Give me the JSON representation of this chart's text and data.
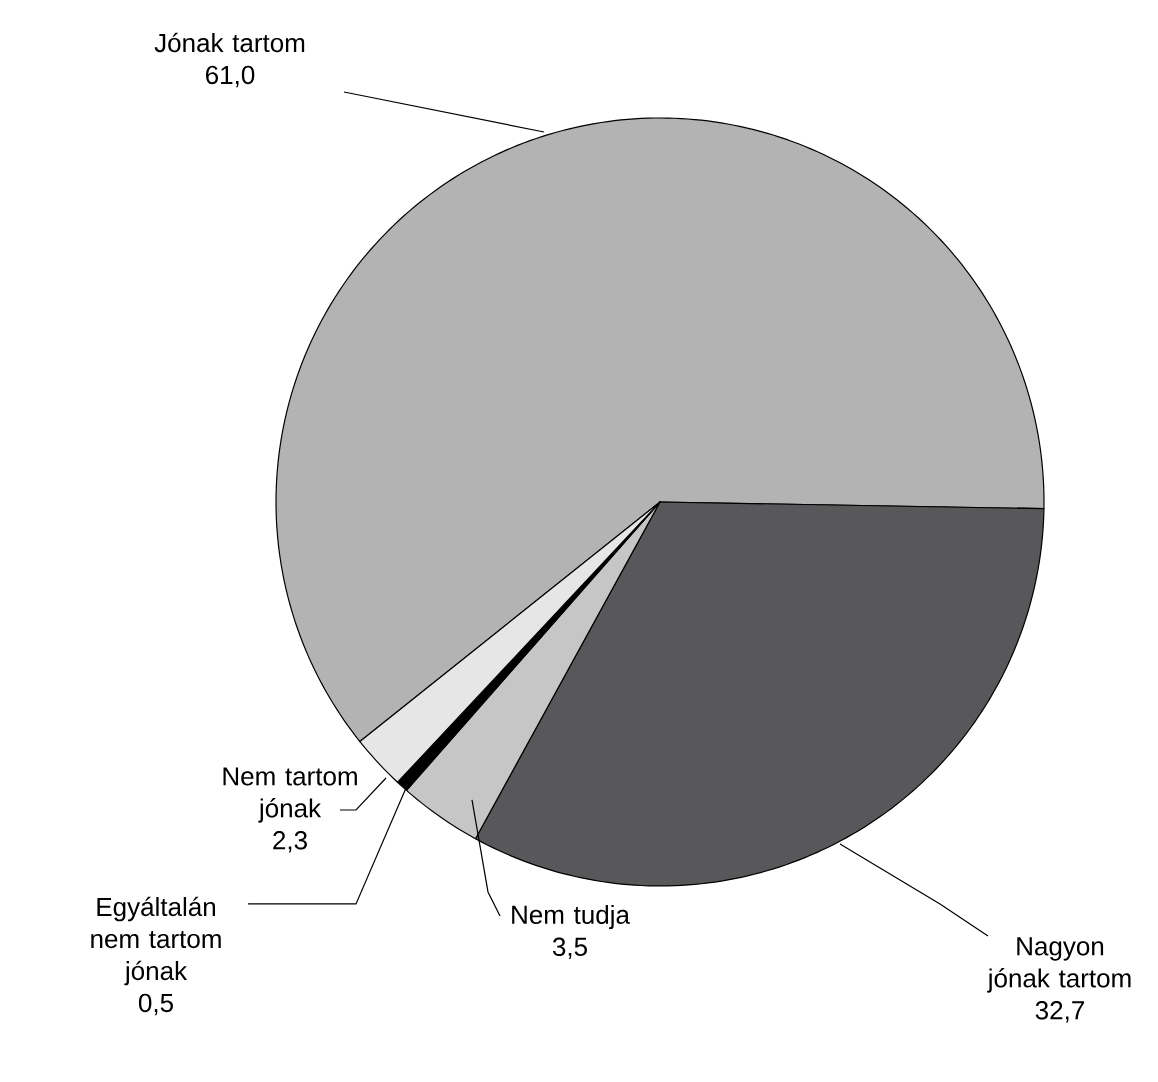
{
  "chart_data": {
    "type": "pie",
    "categories": [
      "Jónak tartom",
      "Nagyon jónak tartom",
      "Nem tudja",
      "Egyáltalán nem tartom jónak",
      "Nem tartom jónak"
    ],
    "values": [
      61.0,
      32.7,
      3.5,
      0.5,
      2.3
    ],
    "colors": [
      "#b3b3b3",
      "#58585a",
      "#c6c6c6",
      "#000000",
      "#e6e6e6"
    ],
    "value_labels": [
      "61,0",
      "32,7",
      "3,5",
      "0,5",
      "2,3"
    ]
  }
}
